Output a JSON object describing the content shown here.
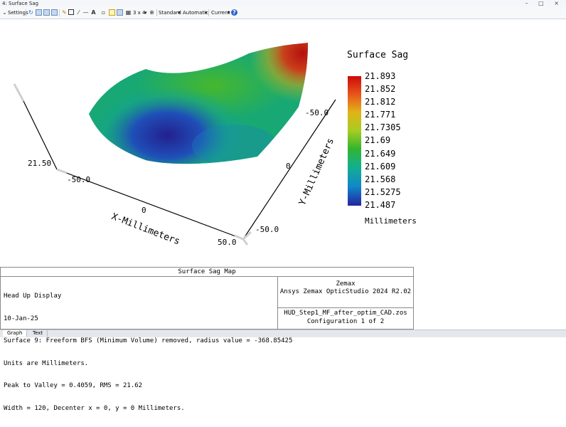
{
  "window": {
    "title": "4: Surface Sag",
    "controls": "– □ ×"
  },
  "toolbar": {
    "settings_label": "Settings",
    "layout_label": "3 x 4",
    "standard_label": "Standard",
    "automatic_label": "Automatic",
    "current_label": "Current",
    "text_tool_glyph": "A",
    "help_glyph": "?"
  },
  "plot": {
    "z_label": "21.50",
    "x_ticks": [
      "-50.0",
      "0",
      "50.0"
    ],
    "y_ticks": [
      "-50.0",
      "0",
      "-50.0"
    ],
    "x_axis_title": "X-Millimeters",
    "y_axis_title": "Y-Millimeters"
  },
  "legend": {
    "title": "Surface Sag",
    "ticks": [
      "21.893",
      "21.852",
      "21.812",
      "21.771",
      "21.7305",
      "21.69",
      "21.649",
      "21.609",
      "21.568",
      "21.5275",
      "21.487"
    ],
    "units": "Millimeters"
  },
  "info": {
    "title": "Surface Sag Map",
    "lines": [
      "Head Up Display",
      "10-Jan-25",
      "Surface 9: Freeform BFS (Minimum Volume) removed, radius value = -368.85425",
      "Units are Millimeters.",
      "Peak to Valley = 0.4059, RMS = 21.62",
      "Width = 120, Decenter x = 0, y = 0 Millimeters."
    ],
    "right_top": [
      "Zemax",
      "Ansys Zemax OpticStudio 2024 R2.02"
    ],
    "right_bottom": [
      "HUD_Step1_MF_after_optim_CAD.zos",
      "Configuration 1 of 2"
    ]
  },
  "tabs": [
    {
      "label": "Graph",
      "active": true
    },
    {
      "label": "Text",
      "active": false
    }
  ]
}
